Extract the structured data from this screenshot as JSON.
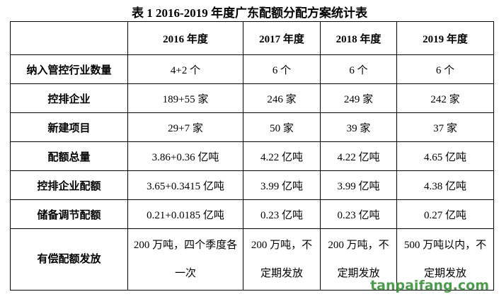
{
  "title": "表 1 2016-2019 年度广东配额分配方案统计表",
  "table": {
    "columns": [
      "2016 年度",
      "2017 年度",
      "2018 年度",
      "2019 年度"
    ],
    "rows": [
      {
        "label": "纳入管控行业数量",
        "cells": [
          "4+2 个",
          "6 个",
          "6 个",
          "6 个"
        ]
      },
      {
        "label": "控排企业",
        "cells": [
          "189+55 家",
          "246 家",
          "249 家",
          "242 家"
        ]
      },
      {
        "label": "新建项目",
        "cells": [
          "29+7 家",
          "50 家",
          "39 家",
          "37 家"
        ]
      },
      {
        "label": "配额总量",
        "cells": [
          "3.86+0.36 亿吨",
          "4.22 亿吨",
          "4.22 亿吨",
          "4.65 亿吨"
        ]
      },
      {
        "label": "控排企业配额",
        "cells": [
          "3.65+0.3415 亿吨",
          "3.99 亿吨",
          "3.99 亿吨",
          "4.38 亿吨"
        ]
      },
      {
        "label": "储备调节配额",
        "cells": [
          "0.21+0.0185 亿吨",
          "0.23 亿吨",
          "0.23 亿吨",
          "0.27 亿吨"
        ]
      },
      {
        "label": "有偿配额发放",
        "cells": [
          "200 万吨，四个季度各一次",
          "200 万吨，不定期发放",
          "200 万吨，不定期发放",
          "500 万吨以内，不定期发放"
        ]
      }
    ]
  },
  "watermark": "tanpaifang.com"
}
